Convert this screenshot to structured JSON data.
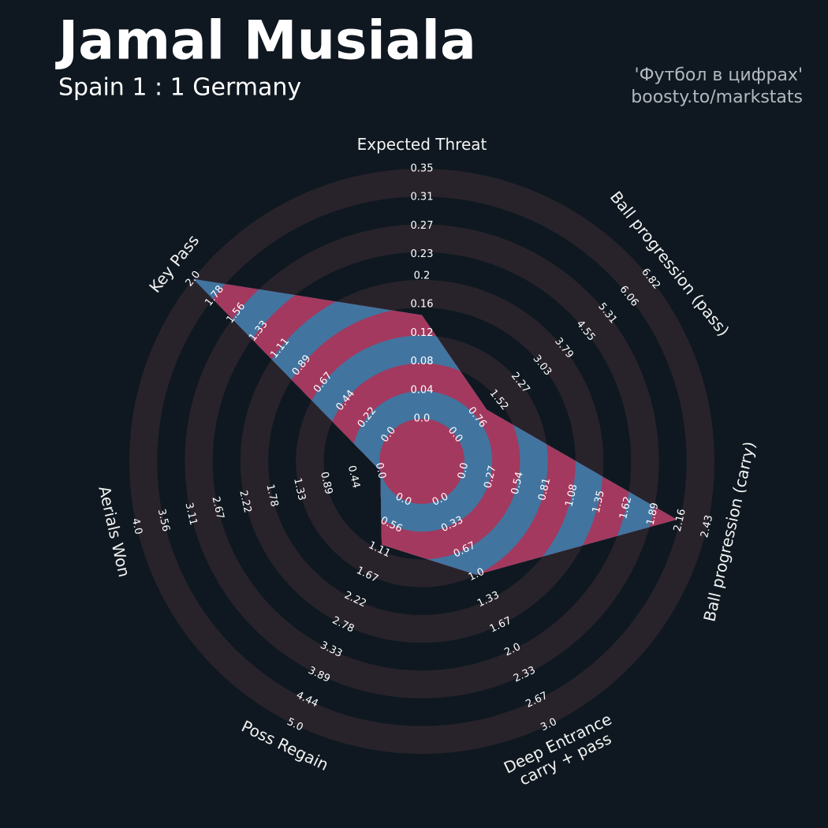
{
  "chart_data": {
    "type": "radar",
    "title": "Jamal Musiala",
    "subtitle": "Spain 1 : 1 Germany",
    "credits": [
      "'Футбол в цифрах'",
      "boosty.to/markstats"
    ],
    "params": [
      [
        "Expected Threat"
      ],
      [
        "Ball progression (pass)"
      ],
      [
        "Ball progression (carry)"
      ],
      [
        "Deep Entrance",
        "carry + pass"
      ],
      [
        "Poss Regain"
      ],
      [
        "Aerials Won"
      ],
      [
        "Key Pass"
      ]
    ],
    "lims": [
      [
        0,
        0.35
      ],
      [
        0,
        6.82
      ],
      [
        0,
        2.43
      ],
      [
        0,
        3
      ],
      [
        0,
        5
      ],
      [
        0,
        4
      ],
      [
        0,
        2
      ]
    ],
    "ticks": [
      [
        {
          "value": 0,
          "label": "0.0"
        },
        0.04,
        0.08,
        0.12,
        0.16,
        0.2,
        0.23,
        0.27,
        0.31,
        0.35
      ],
      [
        {
          "value": 0,
          "label": "0.0"
        },
        0.76,
        1.52,
        2.27,
        3.03,
        3.79,
        4.55,
        5.31,
        6.06,
        6.82
      ],
      [
        {
          "value": 0,
          "label": "0.0"
        },
        0.27,
        0.54,
        0.81,
        1.08,
        1.35,
        1.62,
        1.89,
        2.16,
        2.43
      ],
      [
        {
          "value": 0,
          "label": "0.0"
        },
        0.33,
        0.67,
        {
          "value": 1,
          "label": "1.0"
        },
        1.33,
        1.67,
        {
          "value": 2,
          "label": "2.0"
        },
        2.33,
        2.67,
        {
          "value": 3,
          "label": "3.0"
        }
      ],
      [
        {
          "value": 0,
          "label": "0.0"
        },
        0.56,
        1.11,
        1.67,
        2.22,
        2.78,
        3.33,
        3.89,
        4.44,
        {
          "value": 5,
          "label": "5.0"
        }
      ],
      [
        {
          "value": 0,
          "label": "0.0"
        },
        0.44,
        0.89,
        1.33,
        1.78,
        2.22,
        2.67,
        3.11,
        3.56,
        {
          "value": 4,
          "label": "4.0"
        }
      ],
      [
        {
          "value": 0,
          "label": "0.0"
        },
        0.22,
        0.44,
        0.67,
        0.89,
        1.11,
        1.33,
        1.56,
        1.78,
        {
          "value": 2,
          "label": "2.0"
        }
      ]
    ],
    "series": [
      {
        "colors": [
          "#4274a0",
          "#a3395e"
        ],
        "values": [
          0.145,
          1.1,
          2.13,
          1.0,
          1.0,
          0,
          2.0
        ]
      }
    ],
    "ring_colors": [
      "#0f1820",
      "#28232b"
    ]
  }
}
